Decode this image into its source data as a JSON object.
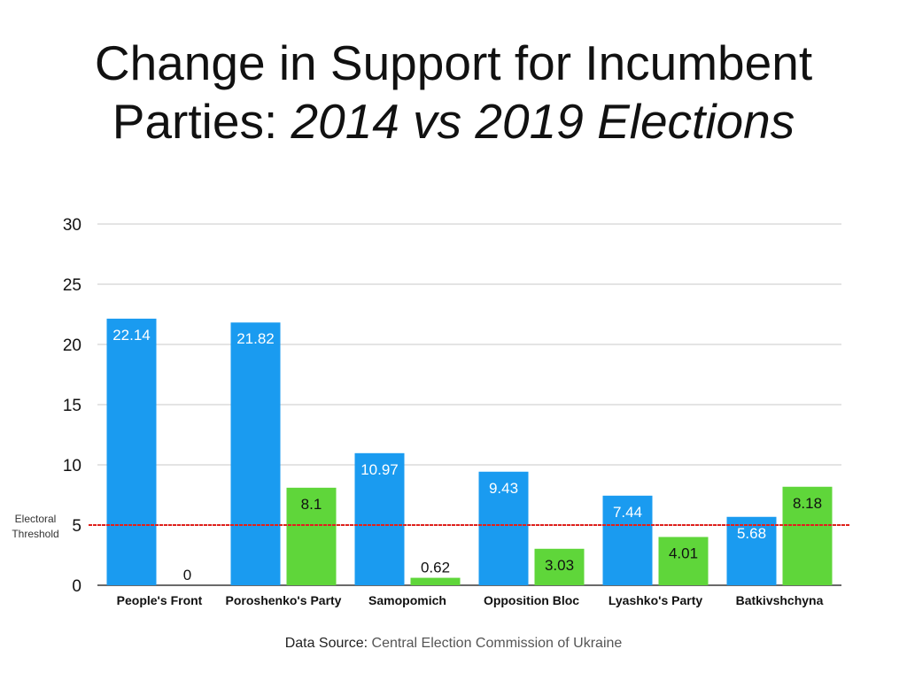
{
  "chart_data": {
    "type": "bar",
    "title_main": "Change in Support for Incumbent",
    "title_line2_plain": "Parties: ",
    "title_line2_italic": "2014 vs 2019 Elections",
    "categories": [
      "People's Front",
      "Poroshenko's Party",
      "Samopomich",
      "Opposition Bloc",
      "Lyashko's Party",
      "Batkivshchyna"
    ],
    "series": [
      {
        "name": "2014",
        "color": "#1a9bf0",
        "label_color": "#ffffff",
        "values": [
          22.14,
          21.82,
          10.97,
          9.43,
          7.44,
          5.68
        ]
      },
      {
        "name": "2019",
        "color": "#5fd63a",
        "label_color": "#111111",
        "values": [
          0,
          8.1,
          0.62,
          3.03,
          4.01,
          8.18
        ]
      }
    ],
    "data_labels": [
      [
        "22.14",
        "21.82",
        "10.97",
        "9.43",
        "7.44",
        "5.68"
      ],
      [
        "0",
        "8.1",
        "0.62",
        "3.03",
        "4.01",
        "8.18"
      ]
    ],
    "ylim": [
      0,
      30
    ],
    "yticks": [
      0,
      5,
      10,
      15,
      20,
      25,
      30
    ],
    "grid": true,
    "threshold": {
      "value": 5,
      "label_line1": "Electoral",
      "label_line2": "Threshold",
      "color": "#e0201c"
    },
    "xlabel": "",
    "ylabel": ""
  },
  "source": {
    "prefix": "Data Source:",
    "value": " Central Election Commission of Ukraine"
  }
}
